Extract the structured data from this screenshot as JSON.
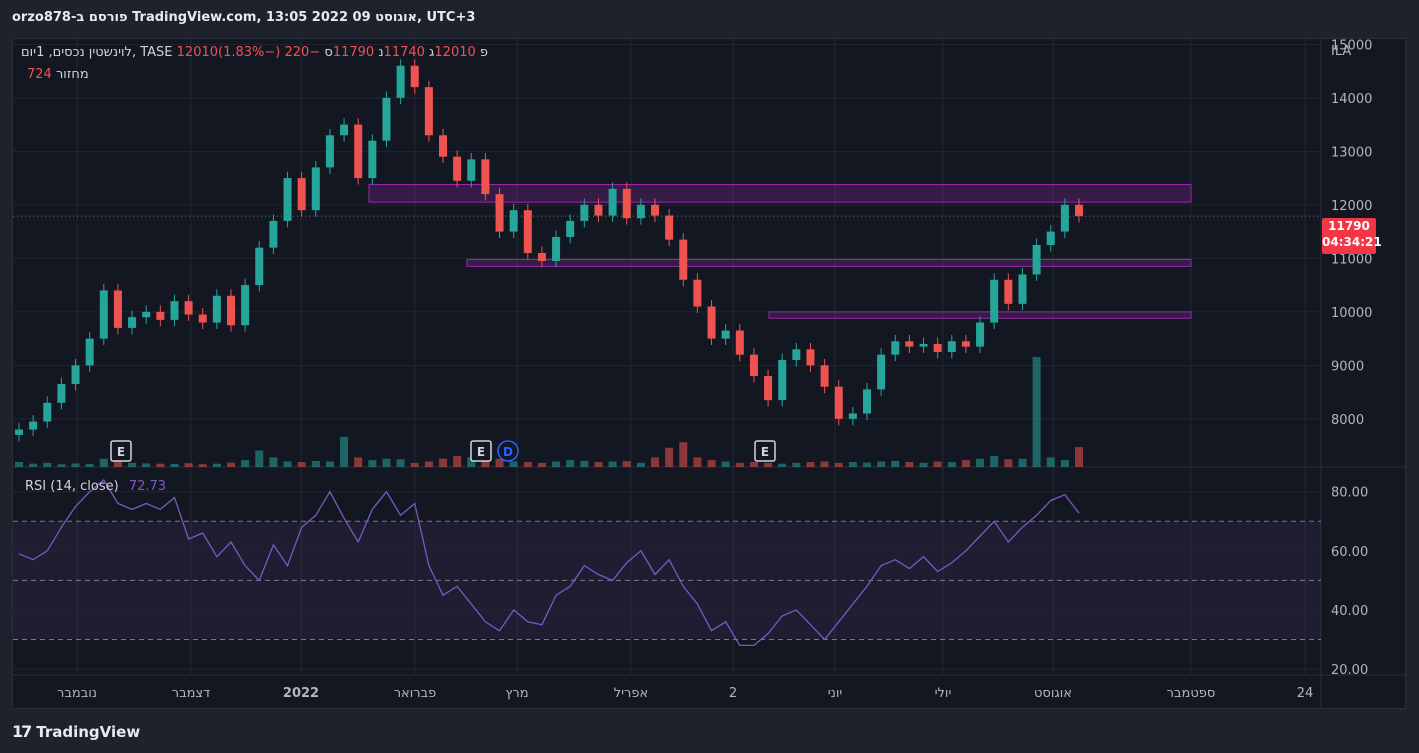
{
  "header": {
    "title": "orzo878-פורסם ב TradingView.com, 13:05 2022 אוגוסט 09, UTC+3"
  },
  "legend": {
    "symbol": "לוינשטין נכסים, 1יום, TASE",
    "open_label": "פ",
    "open": "12010",
    "high_label": "ג",
    "high": "12010",
    "low_label": "נ",
    "low": "11740",
    "close_label": "ס",
    "close": "11790",
    "change": "−220 (−1.83%)",
    "volume_label": "מחזור",
    "volume": "724",
    "rsi_label": "RSI (14, close)",
    "rsi_value": "72.73"
  },
  "price_tag": {
    "price": "11790",
    "countdown": "04:34:21"
  },
  "footer": {
    "brand": "TradingView"
  },
  "colors": {
    "up": "#26a69a",
    "down": "#ef5350",
    "rsi": "#7e57c2",
    "zone": "#9c27b0",
    "bg": "#131722"
  },
  "chart_data": [
    {
      "type": "candlestick",
      "title": "",
      "currency": "ILA",
      "ylim": [
        7100,
        15100
      ],
      "y_ticks": [
        "15000",
        "14000",
        "13000",
        "12000",
        "11000",
        "10000",
        "9000",
        "8000"
      ],
      "x_ticks": [
        "נובמבר",
        "דצמבר",
        "2022",
        "פברואר",
        "מרץ",
        "אפריל",
        "2",
        "יוני",
        "יולי",
        "אוגוסט",
        "ספטמבר",
        "24"
      ],
      "grid": true,
      "series": [
        {
          "name": "",
          "values": [
            7800,
            7950,
            8300,
            8650,
            9000,
            9500,
            10400,
            9700,
            9900,
            10000,
            9850,
            10200,
            9950,
            9800,
            10300,
            9750,
            10500,
            11200,
            11700,
            12500,
            11900,
            12700,
            13300,
            13500,
            12500,
            13200,
            14000,
            14600,
            14200,
            13300,
            12900,
            12450,
            12850,
            12200,
            11500,
            11900,
            11100,
            10950,
            11400,
            11700,
            12000,
            11800,
            12300,
            11750,
            12000,
            11800,
            11350,
            10600,
            10100,
            9500,
            9650,
            9200,
            8800,
            8350,
            9100,
            9300,
            9000,
            8600,
            8000,
            8100,
            8550,
            9200,
            9450,
            9350,
            9400,
            9250,
            9450,
            9350,
            9800,
            10600,
            10150,
            10700,
            11250,
            11500,
            12000,
            11790
          ]
        }
      ],
      "volume": [
        180,
        120,
        150,
        100,
        130,
        110,
        300,
        200,
        150,
        130,
        120,
        110,
        140,
        100,
        120,
        160,
        250,
        600,
        350,
        200,
        180,
        220,
        200,
        1100,
        350,
        250,
        300,
        280,
        150,
        200,
        300,
        400,
        350,
        250,
        300,
        200,
        180,
        150,
        200,
        250,
        220,
        180,
        200,
        210,
        150,
        350,
        700,
        900,
        350,
        250,
        200,
        150,
        180,
        150,
        120,
        150,
        180,
        200,
        150,
        180,
        160,
        200,
        220,
        180,
        150,
        200,
        180,
        250,
        300,
        400,
        280,
        300,
        4000,
        350,
        250,
        724
      ],
      "zones": [
        [
          12050,
          12380
        ],
        [
          10850,
          10980
        ],
        [
          9880,
          10000
        ]
      ],
      "events": [
        "E",
        "E",
        "D",
        "E"
      ]
    },
    {
      "type": "line",
      "title": "RSI (14, close)",
      "ylim": [
        18,
        87
      ],
      "y_ticks": [
        "80.00",
        "60.00",
        "40.00",
        "20.00"
      ],
      "bands": [
        30,
        50,
        70
      ],
      "series": [
        {
          "name": "RSI",
          "values": [
            59,
            57,
            60,
            68,
            75,
            80,
            84,
            76,
            74,
            76,
            74,
            78,
            64,
            66,
            58,
            63,
            55,
            50,
            62,
            55,
            68,
            72,
            80,
            71,
            63,
            74,
            80,
            72,
            76,
            55,
            45,
            48,
            42,
            36,
            33,
            40,
            36,
            35,
            45,
            48,
            55,
            52,
            50,
            56,
            60,
            52,
            57,
            48,
            42,
            33,
            36,
            28,
            28,
            32,
            38,
            40,
            35,
            30,
            36,
            42,
            48,
            55,
            57,
            54,
            58,
            53,
            56,
            60,
            65,
            70,
            63,
            68,
            72,
            77,
            79,
            72.73
          ]
        }
      ]
    }
  ]
}
